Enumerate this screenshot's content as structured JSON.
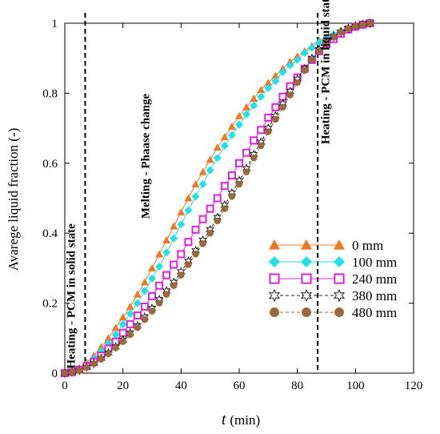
{
  "chart_data": {
    "type": "line",
    "xlabel_symbol": "t",
    "xlabel_unit": "(min)",
    "ylabel": "Avarege liquid fraction (-)",
    "xlim": [
      0,
      120
    ],
    "ylim": [
      0,
      1
    ],
    "xticks": [
      0,
      20,
      40,
      60,
      80,
      100,
      120
    ],
    "yticks": [
      0,
      0.2,
      0.4,
      0.6,
      0.8,
      1
    ],
    "ytick_labels": [
      "0",
      "0.2",
      "0.4",
      "0.6",
      "0.8",
      "1"
    ],
    "vlines": [
      7,
      87
    ],
    "annotations": [
      {
        "text": "Heating - PCM  in solid state",
        "x": 3.5,
        "y": 0.22
      },
      {
        "text": "Melting - Phaase change",
        "x": 29,
        "y": 0.62
      },
      {
        "text": "Heating - PCM in liquid state",
        "x": 91,
        "y": 0.87
      }
    ],
    "legend_position": "bottom-right",
    "series": [
      {
        "name": "0 mm",
        "color": "#f07820",
        "marker": "triangle",
        "x": [
          0,
          2.5,
          5,
          7.5,
          10,
          12.5,
          15,
          17.5,
          20,
          22.5,
          25,
          27.5,
          30,
          32.5,
          35,
          37.5,
          40,
          42.5,
          45,
          47.5,
          50,
          52.5,
          55,
          57.5,
          60,
          62.5,
          65,
          67.5,
          70,
          72.5,
          75,
          77.5,
          80,
          82.5,
          85,
          87.5,
          90,
          92.5,
          95,
          97.5,
          100,
          102.5,
          105
        ],
        "y": [
          0,
          0.005,
          0.015,
          0.03,
          0.05,
          0.075,
          0.1,
          0.13,
          0.16,
          0.19,
          0.225,
          0.26,
          0.3,
          0.34,
          0.38,
          0.42,
          0.46,
          0.5,
          0.54,
          0.575,
          0.61,
          0.645,
          0.675,
          0.705,
          0.735,
          0.76,
          0.785,
          0.81,
          0.83,
          0.85,
          0.87,
          0.89,
          0.905,
          0.92,
          0.935,
          0.95,
          0.96,
          0.97,
          0.98,
          0.988,
          0.993,
          0.997,
          1.0
        ]
      },
      {
        "name": "100 mm",
        "color": "#20e0e8",
        "marker": "diamond",
        "x": [
          0,
          2.5,
          5,
          7.5,
          10,
          12.5,
          15,
          17.5,
          20,
          22.5,
          25,
          27.5,
          30,
          32.5,
          35,
          37.5,
          40,
          42.5,
          45,
          47.5,
          50,
          52.5,
          55,
          57.5,
          60,
          62.5,
          65,
          67.5,
          70,
          72.5,
          75,
          77.5,
          80,
          82.5,
          85,
          87.5,
          90,
          92.5,
          95,
          97.5,
          100,
          102.5,
          105
        ],
        "y": [
          0,
          0.004,
          0.012,
          0.025,
          0.042,
          0.063,
          0.085,
          0.11,
          0.14,
          0.17,
          0.2,
          0.235,
          0.27,
          0.305,
          0.345,
          0.385,
          0.425,
          0.465,
          0.505,
          0.54,
          0.58,
          0.615,
          0.65,
          0.68,
          0.71,
          0.74,
          0.765,
          0.79,
          0.815,
          0.835,
          0.86,
          0.88,
          0.895,
          0.915,
          0.93,
          0.945,
          0.958,
          0.968,
          0.978,
          0.986,
          0.992,
          0.997,
          1.0
        ]
      },
      {
        "name": "240 mm",
        "color": "#e020e0",
        "marker": "square",
        "x": [
          0,
          2.5,
          5,
          7.5,
          10,
          12.5,
          15,
          17.5,
          20,
          22.5,
          25,
          27.5,
          30,
          32.5,
          35,
          37.5,
          40,
          42.5,
          45,
          47.5,
          50,
          52.5,
          55,
          57.5,
          60,
          62.5,
          65,
          67.5,
          70,
          72.5,
          75,
          77.5,
          80,
          82.5,
          85,
          87.5,
          90,
          92.5,
          95,
          97.5,
          100,
          102.5,
          105
        ],
        "y": [
          0,
          0.003,
          0.01,
          0.02,
          0.033,
          0.05,
          0.07,
          0.09,
          0.115,
          0.14,
          0.165,
          0.19,
          0.22,
          0.25,
          0.28,
          0.31,
          0.34,
          0.375,
          0.41,
          0.44,
          0.47,
          0.5,
          0.535,
          0.565,
          0.6,
          0.63,
          0.665,
          0.695,
          0.73,
          0.76,
          0.79,
          0.82,
          0.845,
          0.87,
          0.895,
          0.92,
          0.94,
          0.955,
          0.97,
          0.982,
          0.99,
          0.996,
          1.0
        ]
      },
      {
        "name": "380 mm",
        "color": "#222222",
        "marker": "star",
        "x": [
          0,
          2.5,
          5,
          7.5,
          10,
          12.5,
          15,
          17.5,
          20,
          22.5,
          25,
          27.5,
          30,
          32.5,
          35,
          37.5,
          40,
          42.5,
          45,
          47.5,
          50,
          52.5,
          55,
          57.5,
          60,
          62.5,
          65,
          67.5,
          70,
          72.5,
          75,
          77.5,
          80,
          82.5,
          85,
          87.5,
          90,
          92.5,
          95,
          97.5,
          100,
          102.5,
          105
        ],
        "y": [
          0,
          0.003,
          0.008,
          0.017,
          0.028,
          0.042,
          0.058,
          0.075,
          0.095,
          0.115,
          0.135,
          0.16,
          0.185,
          0.21,
          0.235,
          0.26,
          0.29,
          0.32,
          0.35,
          0.38,
          0.41,
          0.445,
          0.48,
          0.515,
          0.55,
          0.585,
          0.625,
          0.66,
          0.7,
          0.735,
          0.77,
          0.805,
          0.84,
          0.87,
          0.9,
          0.925,
          0.945,
          0.962,
          0.975,
          0.985,
          0.992,
          0.997,
          1.0
        ]
      },
      {
        "name": "480 mm",
        "color": "#9a6a3a",
        "marker": "circle",
        "x": [
          0,
          2.5,
          5,
          7.5,
          10,
          12.5,
          15,
          17.5,
          20,
          22.5,
          25,
          27.5,
          30,
          32.5,
          35,
          37.5,
          40,
          42.5,
          45,
          47.5,
          50,
          52.5,
          55,
          57.5,
          60,
          62.5,
          65,
          67.5,
          70,
          72.5,
          75,
          77.5,
          80,
          82.5,
          85,
          87.5,
          90,
          92.5,
          95,
          97.5,
          100,
          102.5,
          105
        ],
        "y": [
          0,
          0.003,
          0.008,
          0.016,
          0.027,
          0.04,
          0.055,
          0.072,
          0.09,
          0.11,
          0.13,
          0.153,
          0.177,
          0.2,
          0.225,
          0.25,
          0.28,
          0.31,
          0.34,
          0.37,
          0.4,
          0.435,
          0.47,
          0.505,
          0.54,
          0.575,
          0.615,
          0.65,
          0.69,
          0.725,
          0.76,
          0.795,
          0.83,
          0.865,
          0.895,
          0.92,
          0.942,
          0.96,
          0.974,
          0.984,
          0.991,
          0.996,
          1.0
        ]
      }
    ]
  }
}
